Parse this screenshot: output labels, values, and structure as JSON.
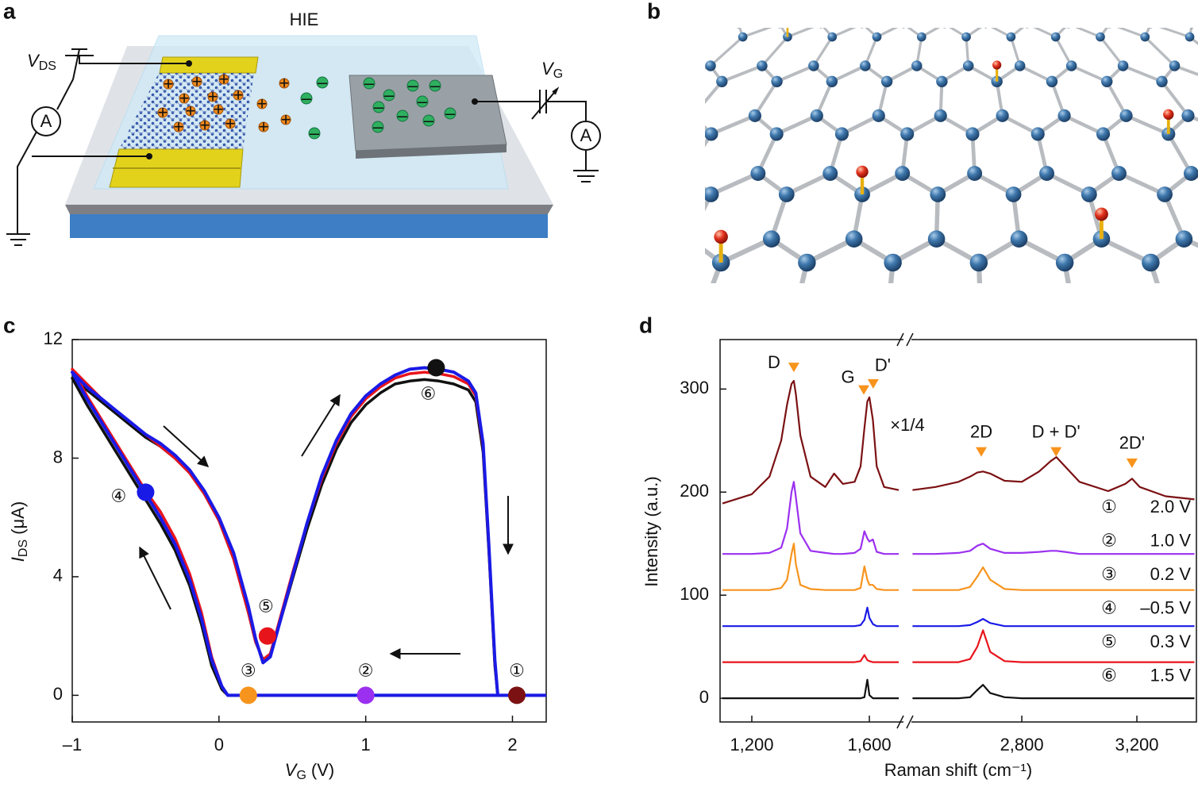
{
  "panel_labels": [
    "a",
    "b",
    "c",
    "d"
  ],
  "schematic": {
    "electrolyte": "HIE",
    "drain_source_voltage": {
      "symbol": "V",
      "subscript": "DS"
    },
    "gate_voltage": {
      "symbol": "V",
      "subscript": "G"
    },
    "ammeters": [
      "A",
      "A"
    ],
    "cation": "+",
    "anion": "–"
  },
  "chart_data": [
    {
      "type": "line",
      "x_label": {
        "symbol": "V",
        "subscript": "G",
        "unit": "(V)"
      },
      "y_label": {
        "symbol": "I",
        "subscript": "DS",
        "unit": "(μA)"
      },
      "xlim": [
        -1,
        2.23
      ],
      "xticks": [
        {
          "value": -1,
          "label": "–1"
        },
        0,
        1,
        2
      ],
      "ylim": [
        -0.9,
        12
      ],
      "yticks": [
        0,
        4,
        8,
        12
      ],
      "series": [
        {
          "color": "#111111",
          "x": [
            2.23,
            0.06,
            0.02,
            -0.05,
            -0.12,
            -0.2,
            -0.3,
            -0.4,
            -0.5,
            -0.6,
            -0.7,
            -0.8,
            -0.9,
            -1,
            -0.9,
            -0.8,
            -0.7,
            -0.6,
            -0.5,
            -0.4,
            -0.3,
            -0.2,
            -0.1,
            0,
            0.1,
            0.2,
            0.25,
            0.3,
            0.35,
            0.4,
            0.5,
            0.6,
            0.7,
            0.8,
            0.9,
            1.0,
            1.1,
            1.2,
            1.3,
            1.4,
            1.5,
            1.6,
            1.7,
            1.75,
            1.8,
            1.84,
            1.88,
            1.9,
            2.23
          ],
          "values": [
            0,
            0,
            0.2,
            1.0,
            2.4,
            3.7,
            4.9,
            5.8,
            6.6,
            7.4,
            8.2,
            9.0,
            9.8,
            10.7,
            10.3,
            9.9,
            9.5,
            9.1,
            8.7,
            8.4,
            8.0,
            7.5,
            6.8,
            5.9,
            4.6,
            2.8,
            1.8,
            1.2,
            1.4,
            2.2,
            3.9,
            5.6,
            7.1,
            8.3,
            9.2,
            9.8,
            10.2,
            10.5,
            10.6,
            10.65,
            10.6,
            10.5,
            10.3,
            9.9,
            8.2,
            4.8,
            1.0,
            0,
            0
          ]
        },
        {
          "color": "#e8141c",
          "x": [
            2.23,
            0.06,
            0.02,
            -0.05,
            -0.12,
            -0.2,
            -0.3,
            -0.4,
            -0.5,
            -0.6,
            -0.7,
            -0.8,
            -0.9,
            -1,
            -0.9,
            -0.8,
            -0.7,
            -0.6,
            -0.5,
            -0.4,
            -0.3,
            -0.2,
            -0.1,
            0,
            0.1,
            0.2,
            0.25,
            0.3,
            0.35,
            0.4,
            0.5,
            0.6,
            0.7,
            0.8,
            0.9,
            1.0,
            1.1,
            1.2,
            1.3,
            1.4,
            1.5,
            1.6,
            1.7,
            1.75,
            1.8,
            1.84,
            1.88,
            1.9,
            2.23
          ],
          "values": [
            0,
            0,
            0.3,
            1.3,
            2.8,
            4.1,
            5.3,
            6.2,
            6.9,
            7.7,
            8.5,
            9.3,
            10.1,
            11.0,
            10.5,
            10.0,
            9.6,
            9.2,
            8.8,
            8.4,
            8.0,
            7.5,
            6.8,
            5.9,
            4.6,
            2.8,
            1.8,
            1.2,
            1.4,
            2.3,
            4.1,
            5.8,
            7.3,
            8.5,
            9.4,
            10.0,
            10.4,
            10.7,
            10.85,
            10.9,
            10.85,
            10.75,
            10.5,
            10.1,
            8.4,
            4.9,
            1.1,
            0,
            0
          ]
        },
        {
          "color": "#1a1ae6",
          "x": [
            2.23,
            0.06,
            0.02,
            -0.05,
            -0.12,
            -0.2,
            -0.3,
            -0.4,
            -0.5,
            -0.6,
            -0.7,
            -0.8,
            -0.9,
            -1,
            -0.9,
            -0.8,
            -0.7,
            -0.6,
            -0.5,
            -0.4,
            -0.3,
            -0.2,
            -0.1,
            0,
            0.1,
            0.2,
            0.25,
            0.3,
            0.35,
            0.4,
            0.5,
            0.6,
            0.7,
            0.8,
            0.9,
            1.0,
            1.1,
            1.2,
            1.3,
            1.4,
            1.5,
            1.6,
            1.7,
            1.75,
            1.8,
            1.84,
            1.88,
            1.9,
            2.23
          ],
          "values": [
            0,
            0,
            0.3,
            1.2,
            2.6,
            3.9,
            5.1,
            6.0,
            6.8,
            7.6,
            8.4,
            9.2,
            10.0,
            10.9,
            10.4,
            10.0,
            9.6,
            9.2,
            8.8,
            8.5,
            8.1,
            7.6,
            6.9,
            6.0,
            4.8,
            3.0,
            1.9,
            1.1,
            1.3,
            2.2,
            4.0,
            5.8,
            7.4,
            8.6,
            9.5,
            10.1,
            10.5,
            10.8,
            11.0,
            11.05,
            11.0,
            10.9,
            10.6,
            10.2,
            8.5,
            5.0,
            1.2,
            0,
            0
          ]
        }
      ],
      "points": [
        {
          "label": "①",
          "x": 2.03,
          "y": 0,
          "color": "#7b1113"
        },
        {
          "label": "②",
          "x": 1.0,
          "y": 0,
          "color": "#9b30f0"
        },
        {
          "label": "③",
          "x": 0.2,
          "y": 0,
          "color": "#f7941d"
        },
        {
          "label": "④",
          "x": -0.5,
          "y": 6.85,
          "color": "#1a1ae6"
        },
        {
          "label": "⑤",
          "x": 0.33,
          "y": 2.0,
          "color": "#e8141c"
        },
        {
          "label": "⑥",
          "x": 1.48,
          "y": 11.05,
          "color": "#111111"
        }
      ]
    },
    {
      "type": "line",
      "x_label": "Raman shift (cm⁻¹)",
      "y_label": "Intensity (a.u.)",
      "xlim": [
        1092,
        3407
      ],
      "xbreak": [
        1716,
        2416
      ],
      "xticks": [
        {
          "value": 1200,
          "label": "1,200"
        },
        {
          "value": 1600,
          "label": "1,600"
        },
        {
          "value": 2800,
          "label": "2,800"
        },
        {
          "value": 3200,
          "label": "3,200"
        }
      ],
      "ylim": [
        -23,
        348
      ],
      "yticks": [
        0,
        100,
        200,
        300
      ],
      "x": [
        1100,
        1200,
        1260,
        1300,
        1320,
        1335,
        1343,
        1350,
        1365,
        1400,
        1450,
        1480,
        1510,
        1550,
        1570,
        1583,
        1593,
        1600,
        1612,
        1625,
        1650,
        1700,
        2000,
        2420,
        2500,
        2580,
        2620,
        2645,
        2665,
        2690,
        2740,
        2800,
        2860,
        2900,
        2920,
        2950,
        3000,
        3100,
        3160,
        3183,
        3210,
        3300,
        3400
      ],
      "series": [
        {
          "marker": "①",
          "name": "2.0 V",
          "color": "#7b1113",
          "values": [
            189,
            198,
            215,
            250,
            285,
            305,
            308,
            295,
            255,
            215,
            205,
            218,
            208,
            210,
            225,
            262,
            288,
            292,
            270,
            225,
            205,
            202,
            null,
            202,
            205,
            210,
            215,
            219,
            220,
            218,
            211,
            210,
            220,
            230,
            234,
            225,
            210,
            201,
            208,
            213,
            205,
            196,
            193
          ]
        },
        {
          "marker": "②",
          "name": "1.0 V",
          "color": "#9b30f0",
          "values": [
            140,
            140,
            141,
            146,
            165,
            200,
            210,
            195,
            160,
            143,
            141,
            140,
            140,
            141,
            145,
            162,
            155,
            152,
            154,
            142,
            140,
            140,
            null,
            140,
            140,
            141,
            143,
            148,
            150,
            145,
            141,
            141,
            142,
            143,
            143,
            142,
            140,
            140,
            140,
            140,
            140,
            140,
            140
          ]
        },
        {
          "marker": "③",
          "name": "0.2 V",
          "color": "#f7941d",
          "values": [
            105,
            105,
            105,
            107,
            115,
            140,
            150,
            130,
            110,
            106,
            105,
            105,
            105,
            105,
            107,
            128,
            115,
            110,
            110,
            106,
            105,
            105,
            null,
            105,
            105,
            105,
            108,
            118,
            127,
            115,
            106,
            105,
            105,
            105,
            105,
            105,
            105,
            105,
            105,
            105,
            105,
            105,
            105
          ]
        },
        {
          "marker": "④",
          "name": "–0.5 V",
          "color": "#1a1ae6",
          "values": [
            70,
            70,
            70,
            70,
            70,
            70,
            70,
            70,
            70,
            70,
            70,
            70,
            70,
            70,
            71,
            76,
            88,
            78,
            72,
            70,
            70,
            70,
            null,
            70,
            70,
            70,
            71,
            74,
            77,
            73,
            70,
            70,
            70,
            70,
            70,
            70,
            70,
            70,
            70,
            70,
            70,
            70,
            70
          ]
        },
        {
          "marker": "⑤",
          "name": "0.3 V",
          "color": "#e8141c",
          "values": [
            35,
            35,
            35,
            35,
            35,
            35,
            35,
            35,
            35,
            35,
            35,
            35,
            35,
            35,
            36,
            42,
            37,
            36,
            35,
            35,
            35,
            35,
            null,
            35,
            35,
            35,
            38,
            50,
            66,
            45,
            36,
            35,
            35,
            35,
            35,
            35,
            35,
            35,
            35,
            35,
            35,
            35,
            35
          ]
        },
        {
          "marker": "⑥",
          "name": "1.5 V",
          "color": "#111111",
          "values": [
            0,
            0,
            0,
            0,
            0,
            0,
            0,
            0,
            0,
            0,
            0,
            0,
            0,
            0,
            0,
            1,
            18,
            3,
            0,
            0,
            0,
            0,
            null,
            0,
            0,
            0,
            1,
            8,
            13,
            5,
            1,
            0,
            0,
            0,
            0,
            0,
            0,
            0,
            0,
            0,
            0,
            0,
            0
          ]
        }
      ],
      "peaks": [
        {
          "label": "D",
          "x": 1343,
          "y": 321
        },
        {
          "label": "G",
          "x": 1581,
          "y": 299
        },
        {
          "label": "D'",
          "x": 1613,
          "y": 305
        },
        {
          "label": "2D",
          "x": 2659,
          "y": 239
        },
        {
          "label": "D + D'",
          "x": 2919,
          "y": 239
        },
        {
          "label": "2D'",
          "x": 3183,
          "y": 228
        }
      ],
      "peak_color": "#f7941d",
      "annotation": {
        "text": "×1/4",
        "color": "#7b1113"
      }
    }
  ]
}
